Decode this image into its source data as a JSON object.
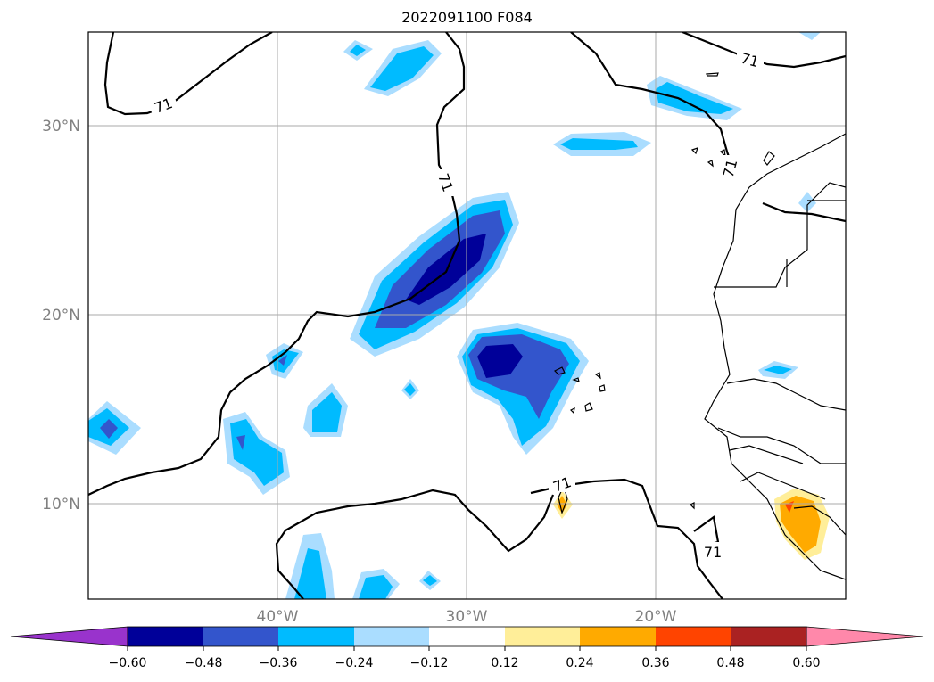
{
  "title": "2022091100 F084",
  "lon_labels": [
    "40°W",
    "30°W",
    "20°W"
  ],
  "lat_labels": [
    "30°N",
    "20°N",
    "10°N"
  ],
  "contour_label": "71",
  "colorbar": {
    "ticks": [
      "−0.60",
      "−0.48",
      "−0.36",
      "−0.24",
      "−0.12",
      "0.12",
      "0.24",
      "0.36",
      "0.48",
      "0.60"
    ],
    "colors": [
      "#9933cc",
      "#000099",
      "#3355cc",
      "#00bbff",
      "#aaddff",
      "#ffffff",
      "#ffee99",
      "#ffaa00",
      "#ff4400",
      "#aa2222",
      "#ff88aa"
    ]
  },
  "colors": {
    "strong_neg": "#000099",
    "neg": "#3355cc",
    "mid_neg": "#00bbff",
    "weak_neg": "#aaddff",
    "weak_pos": "#ffee99",
    "pos": "#ffaa00",
    "strong_pos": "#ff4400"
  }
}
